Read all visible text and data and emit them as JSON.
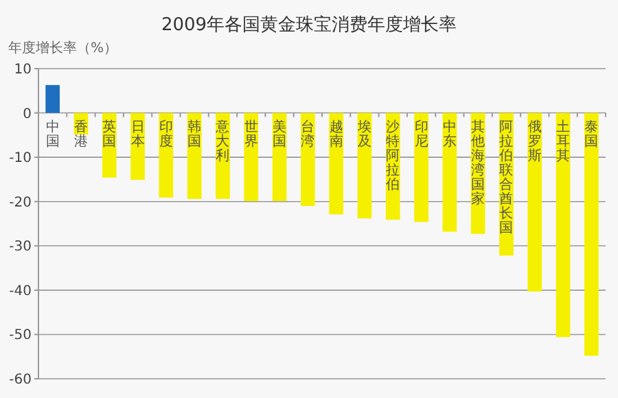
{
  "chart_data": {
    "type": "bar",
    "title": "2009年各国黄金珠宝消费年度增长率",
    "ylabel": "年度增长率（%）",
    "categories": [
      "中国",
      "香港",
      "英国",
      "日本",
      "印度",
      "韩国",
      "意大利",
      "世界",
      "美国",
      "台湾",
      "越南",
      "埃及",
      "沙特阿拉伯",
      "印尼",
      "中东",
      "其他海湾国家",
      "阿拉伯联合酋长国",
      "俄罗斯",
      "土耳其",
      "泰国"
    ],
    "values": [
      6.3,
      -4.9,
      -14.6,
      -15.1,
      -19.1,
      -19.4,
      -19.4,
      -19.9,
      -19.9,
      -21.0,
      -22.9,
      -23.8,
      -24.1,
      -24.6,
      -26.8,
      -27.3,
      -32.2,
      -40.3,
      -50.6,
      -54.8
    ],
    "colors": [
      "#1f6fc0",
      "#f5f000",
      "#f5f000",
      "#f5f000",
      "#f5f000",
      "#f5f000",
      "#f5f000",
      "#f5f000",
      "#f5f000",
      "#f5f000",
      "#f5f000",
      "#f5f000",
      "#f5f000",
      "#f5f000",
      "#f5f000",
      "#f5f000",
      "#f5f000",
      "#f5f000",
      "#f5f000",
      "#f5f000"
    ],
    "ylim": [
      -60,
      10
    ],
    "yticks": [
      10,
      0,
      -10,
      -20,
      -30,
      -40,
      -50,
      -60
    ],
    "grid": "y"
  }
}
